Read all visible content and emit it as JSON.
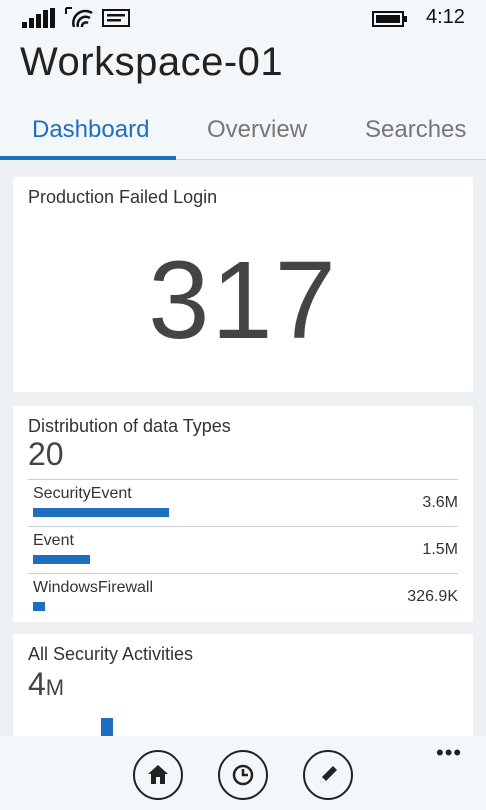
{
  "status_bar": {
    "time": "4:12",
    "icons": [
      "signal-icon",
      "wifi-icon",
      "message-icon",
      "battery-icon"
    ]
  },
  "header": {
    "title": "Workspace-01",
    "tabs": [
      {
        "label": "Dashboard",
        "active": true
      },
      {
        "label": "Overview",
        "active": false
      },
      {
        "label": "Searches",
        "active": false
      }
    ]
  },
  "cards": {
    "failed_login": {
      "title": "Production Failed Login",
      "value": "317"
    },
    "distribution": {
      "title": "Distribution of data Types",
      "count": "20",
      "rows": [
        {
          "name": "SecurityEvent",
          "value": "3.6M",
          "fraction": 1.0
        },
        {
          "name": "Event",
          "value": "1.5M",
          "fraction": 0.42
        },
        {
          "name": "WindowsFirewall",
          "value": "326.9K",
          "fraction": 0.09
        }
      ]
    },
    "security_activities": {
      "title": "All Security Activities",
      "value": "4",
      "unit": "M"
    }
  },
  "app_bar": {
    "buttons": [
      "home-icon",
      "history-icon",
      "edit-icon"
    ],
    "more_label": "•••"
  },
  "colors": {
    "accent": "#1e6fbf",
    "background": "#eef1f4",
    "card": "#ffffff"
  }
}
